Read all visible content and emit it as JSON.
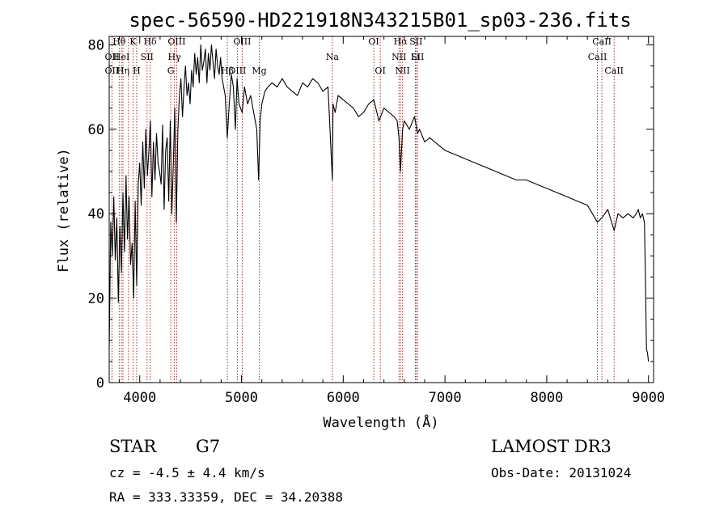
{
  "chart_data": {
    "type": "line",
    "title": "spec-56590-HD221918N343215B01_sp03-236.fits",
    "xlabel": "Wavelength (Å)",
    "ylabel": "Flux (relative)",
    "xlim": [
      3700,
      9050
    ],
    "ylim": [
      0,
      82
    ],
    "xticks": [
      4000,
      5000,
      6000,
      7000,
      8000,
      9000
    ],
    "yticks": [
      0,
      20,
      40,
      60,
      80
    ],
    "grid": false,
    "series": [
      {
        "name": "flux",
        "x": [
          3700,
          3715,
          3730,
          3745,
          3760,
          3775,
          3790,
          3805,
          3820,
          3835,
          3850,
          3865,
          3880,
          3895,
          3910,
          3925,
          3940,
          3955,
          3970,
          3985,
          4000,
          4015,
          4030,
          4045,
          4060,
          4075,
          4090,
          4105,
          4120,
          4135,
          4150,
          4165,
          4180,
          4195,
          4210,
          4225,
          4240,
          4255,
          4270,
          4285,
          4300,
          4315,
          4330,
          4345,
          4360,
          4375,
          4390,
          4405,
          4420,
          4435,
          4450,
          4465,
          4480,
          4495,
          4510,
          4525,
          4540,
          4555,
          4570,
          4585,
          4600,
          4615,
          4630,
          4645,
          4660,
          4675,
          4690,
          4705,
          4720,
          4735,
          4750,
          4765,
          4780,
          4795,
          4810,
          4825,
          4840,
          4861,
          4880,
          4900,
          4920,
          4940,
          4957,
          4975,
          5007,
          5030,
          5060,
          5090,
          5120,
          5150,
          5168,
          5183,
          5200,
          5230,
          5260,
          5300,
          5350,
          5400,
          5450,
          5500,
          5550,
          5600,
          5650,
          5700,
          5750,
          5800,
          5850,
          5893,
          5900,
          5920,
          5950,
          6000,
          6050,
          6100,
          6150,
          6200,
          6250,
          6300,
          6350,
          6400,
          6450,
          6500,
          6530,
          6548,
          6563,
          6583,
          6600,
          6650,
          6700,
          6716,
          6731,
          6750,
          6800,
          6850,
          6900,
          6950,
          7000,
          7100,
          7200,
          7300,
          7400,
          7500,
          7600,
          7700,
          7800,
          7900,
          8000,
          8100,
          8200,
          8300,
          8400,
          8498,
          8542,
          8600,
          8662,
          8700,
          8750,
          8800,
          8850,
          8880,
          8900,
          8920,
          8940,
          8960,
          8970,
          8980,
          8990,
          9000
        ],
        "y": [
          8,
          38,
          30,
          44,
          29,
          39,
          19,
          37,
          26,
          45,
          31,
          49,
          34,
          44,
          28,
          33,
          20,
          43,
          23,
          47,
          52,
          42,
          57,
          46,
          60,
          49,
          55,
          62,
          44,
          57,
          48,
          59,
          52,
          50,
          47,
          61,
          41,
          55,
          58,
          43,
          62,
          40,
          52,
          65,
          38,
          60,
          68,
          72,
          63,
          70,
          75,
          68,
          71,
          66,
          74,
          70,
          78,
          73,
          77,
          71,
          80,
          74,
          76,
          79,
          71,
          78,
          74,
          80,
          76,
          72,
          79,
          75,
          73,
          77,
          72,
          70,
          68,
          58,
          66,
          73,
          70,
          60,
          72,
          66,
          64,
          70,
          66,
          68,
          64,
          60,
          48,
          62,
          66,
          69,
          70,
          71,
          70,
          72,
          70,
          69,
          68,
          71,
          70,
          72,
          71,
          69,
          70,
          48,
          66,
          64,
          68,
          67,
          66,
          65,
          63,
          64,
          66,
          67,
          62,
          65,
          64,
          63,
          62,
          58,
          50,
          60,
          62,
          60,
          63,
          61,
          59,
          60,
          57,
          58,
          57,
          56,
          55,
          54,
          53,
          52,
          51,
          50,
          49,
          48,
          48,
          47,
          46,
          45,
          44,
          43,
          42,
          38,
          39,
          41,
          36,
          40,
          39,
          40,
          39,
          40,
          41,
          39,
          40,
          38,
          25,
          8,
          7,
          5
        ]
      }
    ],
    "annotations": [
      {
        "label": "Hθ",
        "x": 3798
      },
      {
        "label": "OII",
        "x": 3727
      },
      {
        "label": "OII",
        "x": 3727
      },
      {
        "label": "HeI",
        "x": 3820
      },
      {
        "label": "Hη",
        "x": 3835
      },
      {
        "label": "K",
        "x": 3934
      },
      {
        "label": "H",
        "x": 3970
      },
      {
        "label": "Hδ",
        "x": 4102
      },
      {
        "label": "SII",
        "x": 4072
      },
      {
        "label": "OIII",
        "x": 4363
      },
      {
        "label": "Hγ",
        "x": 4341
      },
      {
        "label": "G",
        "x": 4305
      },
      {
        "label": "OIII",
        "x": 4959
      },
      {
        "label": "OIII",
        "x": 5007
      },
      {
        "label": "Hβ",
        "x": 4861
      },
      {
        "label": "Mg",
        "x": 5175
      },
      {
        "label": "Na",
        "x": 5893
      },
      {
        "label": "OI",
        "x": 6300
      },
      {
        "label": "OI",
        "x": 6364
      },
      {
        "label": "Hα",
        "x": 6563
      },
      {
        "label": "NII",
        "x": 6548
      },
      {
        "label": "NII",
        "x": 6583
      },
      {
        "label": "SII",
        "x": 6716
      },
      {
        "label": "SII",
        "x": 6731
      },
      {
        "label": "Li",
        "x": 6708
      },
      {
        "label": "CaII",
        "x": 8542
      },
      {
        "label": "CaII",
        "x": 8498
      },
      {
        "label": "CaII",
        "x": 8662
      }
    ],
    "line_markers": [
      3727,
      3798,
      3820,
      3835,
      3889,
      3934,
      3970,
      4072,
      4102,
      4305,
      4341,
      4363,
      4861,
      4959,
      5007,
      5175,
      5893,
      6300,
      6364,
      6548,
      6563,
      6583,
      6708,
      6716,
      6731,
      8498,
      8542,
      8662
    ]
  },
  "info": {
    "object_class": "STAR",
    "subclass": "G7",
    "survey": "LAMOST DR3",
    "redshift": "cz = -4.5 ± 4.4 km/s",
    "obs_date": "Obs-Date: 20131024",
    "coords": "RA = 333.33359, DEC =  34.20388"
  },
  "colors": {
    "marker": "#a01818",
    "spectrum": "#000000"
  }
}
